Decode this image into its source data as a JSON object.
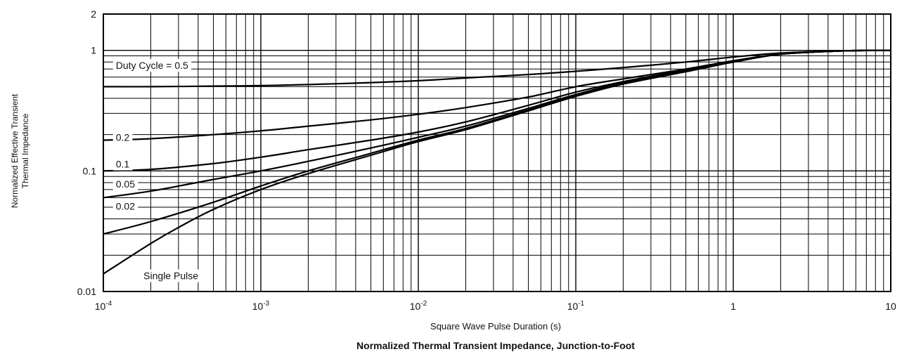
{
  "chart_data": {
    "type": "line",
    "title": "Normalized Thermal Transient Impedance, Junction-to-Foot",
    "xlabel": "Square Wave Pulse Duration (s)",
    "ylabel_line1": "Normalized Effective Transient",
    "ylabel_line2": "Thermal Impedance",
    "x_scale": "log",
    "y_scale": "log",
    "xlim": [
      0.0001,
      10
    ],
    "ylim": [
      0.01,
      2
    ],
    "grid": true,
    "x_ticks": [
      {
        "value": 0.0001,
        "base": "10",
        "exp": "-4"
      },
      {
        "value": 0.001,
        "base": "10",
        "exp": "-3"
      },
      {
        "value": 0.01,
        "base": "10",
        "exp": "-2"
      },
      {
        "value": 0.1,
        "base": "10",
        "exp": "-1"
      },
      {
        "value": 1,
        "base": "1",
        "exp": ""
      },
      {
        "value": 10,
        "base": "10",
        "exp": ""
      }
    ],
    "y_ticks": [
      {
        "value": 0.01,
        "label": "0.01"
      },
      {
        "value": 0.1,
        "label": "0.1"
      },
      {
        "value": 1,
        "label": "1"
      },
      {
        "value": 2,
        "label": "2"
      }
    ],
    "series": [
      {
        "name": "Duty Cycle = 0.5",
        "label_at": [
          0.00012,
          0.75
        ],
        "x": [
          0.0001,
          0.0002,
          0.0005,
          0.001,
          0.002,
          0.005,
          0.01,
          0.02,
          0.05,
          0.1,
          0.2,
          0.5,
          1,
          2,
          5,
          10
        ],
        "y": [
          0.5,
          0.5,
          0.505,
          0.51,
          0.52,
          0.54,
          0.56,
          0.59,
          0.63,
          0.67,
          0.72,
          0.8,
          0.88,
          0.95,
          0.99,
          1.0
        ]
      },
      {
        "name": "0.2",
        "label_at": [
          0.00012,
          0.19
        ],
        "x": [
          0.0001,
          0.0002,
          0.0005,
          0.001,
          0.002,
          0.005,
          0.01,
          0.02,
          0.05,
          0.1,
          0.2,
          0.5,
          1,
          2,
          5,
          10
        ],
        "y": [
          0.18,
          0.185,
          0.2,
          0.215,
          0.235,
          0.265,
          0.295,
          0.335,
          0.41,
          0.5,
          0.58,
          0.7,
          0.82,
          0.93,
          0.99,
          1.0
        ]
      },
      {
        "name": "0.1",
        "label_at": [
          0.00012,
          0.114
        ],
        "x": [
          0.0001,
          0.0002,
          0.0005,
          0.001,
          0.002,
          0.005,
          0.01,
          0.02,
          0.05,
          0.1,
          0.2,
          0.5,
          1,
          2,
          5,
          10
        ],
        "y": [
          0.1,
          0.103,
          0.115,
          0.13,
          0.15,
          0.18,
          0.21,
          0.255,
          0.35,
          0.45,
          0.55,
          0.69,
          0.81,
          0.93,
          0.99,
          1.0
        ]
      },
      {
        "name": "0.05",
        "label_at": [
          0.00012,
          0.078
        ],
        "x": [
          0.0001,
          0.0002,
          0.0005,
          0.001,
          0.002,
          0.005,
          0.01,
          0.02,
          0.05,
          0.1,
          0.2,
          0.5,
          1,
          2,
          5,
          10
        ],
        "y": [
          0.06,
          0.068,
          0.085,
          0.1,
          0.12,
          0.155,
          0.19,
          0.235,
          0.33,
          0.43,
          0.54,
          0.68,
          0.8,
          0.93,
          0.99,
          1.0
        ]
      },
      {
        "name": "0.02",
        "label_at": [
          0.00012,
          0.051
        ],
        "x": [
          0.0001,
          0.0002,
          0.0005,
          0.001,
          0.002,
          0.005,
          0.01,
          0.02,
          0.05,
          0.1,
          0.2,
          0.5,
          1,
          2,
          5,
          10
        ],
        "y": [
          0.03,
          0.038,
          0.055,
          0.075,
          0.1,
          0.14,
          0.18,
          0.225,
          0.32,
          0.42,
          0.53,
          0.67,
          0.8,
          0.93,
          0.99,
          1.0
        ]
      },
      {
        "name": "Single Pulse",
        "label_at": [
          0.00018,
          0.0135
        ],
        "x": [
          0.0001,
          0.0002,
          0.0003,
          0.0005,
          0.001,
          0.002,
          0.005,
          0.01,
          0.02,
          0.05,
          0.1,
          0.2,
          0.5,
          1,
          2,
          5,
          10
        ],
        "y": [
          0.014,
          0.025,
          0.034,
          0.048,
          0.07,
          0.095,
          0.135,
          0.175,
          0.22,
          0.315,
          0.415,
          0.525,
          0.665,
          0.8,
          0.93,
          0.99,
          1.0
        ]
      }
    ]
  }
}
